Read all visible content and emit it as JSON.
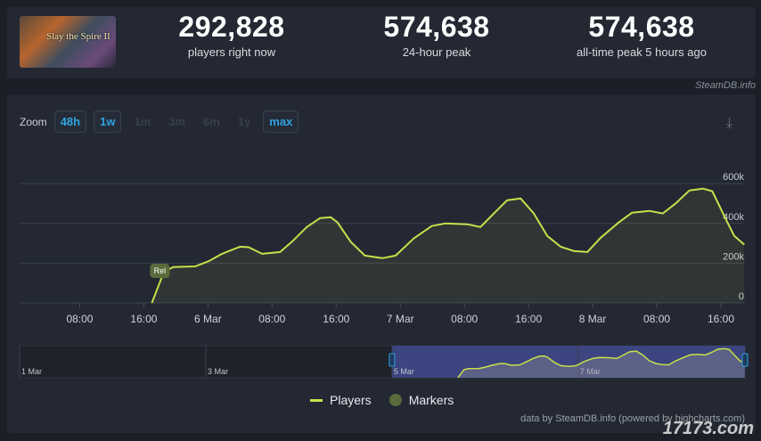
{
  "game": {
    "cover_text": "Slay the Spire II"
  },
  "stats": [
    {
      "value": "292,828",
      "label": "players right now"
    },
    {
      "value": "574,638",
      "label": "24-hour peak"
    },
    {
      "value": "574,638",
      "label": "all-time peak 5 hours ago"
    }
  ],
  "credit": "SteamDB.info",
  "zoom": {
    "label": "Zoom",
    "buttons": [
      {
        "label": "48h",
        "active": true
      },
      {
        "label": "1w",
        "active": true
      },
      {
        "label": "1m",
        "active": false
      },
      {
        "label": "3m",
        "active": false
      },
      {
        "label": "6m",
        "active": false
      },
      {
        "label": "1y",
        "active": false
      },
      {
        "label": "max",
        "active": true
      }
    ]
  },
  "download_icon": "download-icon",
  "chart_data": {
    "type": "area",
    "line_color": "#c8e04a",
    "x_range": [
      "5 Mar 00:30",
      "8 Mar 19:00"
    ],
    "ylim": [
      0,
      650000
    ],
    "y_ticks": [
      {
        "value": 0,
        "label": "0"
      },
      {
        "value": 200000,
        "label": "200k"
      },
      {
        "value": 400000,
        "label": "400k"
      },
      {
        "value": 600000,
        "label": "600k"
      }
    ],
    "x_ticks": [
      {
        "t": "5 Mar 08:00",
        "label": "08:00"
      },
      {
        "t": "5 Mar 16:00",
        "label": "16:00"
      },
      {
        "t": "6 Mar 00:00",
        "label": "6 Mar"
      },
      {
        "t": "6 Mar 08:00",
        "label": "08:00"
      },
      {
        "t": "6 Mar 16:00",
        "label": "16:00"
      },
      {
        "t": "7 Mar 00:00",
        "label": "7 Mar"
      },
      {
        "t": "7 Mar 08:00",
        "label": "08:00"
      },
      {
        "t": "7 Mar 16:00",
        "label": "16:00"
      },
      {
        "t": "8 Mar 00:00",
        "label": "8 Mar"
      },
      {
        "t": "8 Mar 08:00",
        "label": "08:00"
      },
      {
        "t": "8 Mar 16:00",
        "label": "16:00"
      }
    ],
    "grid": true,
    "series": [
      {
        "name": "Players",
        "points": [
          [
            "5 Mar 17:00",
            0
          ],
          [
            "5 Mar 18:30",
            155000
          ],
          [
            "5 Mar 19:40",
            180000
          ],
          [
            "5 Mar 22:25",
            184000
          ],
          [
            "6 Mar 00:05",
            210000
          ],
          [
            "6 Mar 01:45",
            247000
          ],
          [
            "6 Mar 04:00",
            283000
          ],
          [
            "6 Mar 05:05",
            280000
          ],
          [
            "6 Mar 06:45",
            247000
          ],
          [
            "6 Mar 09:00",
            256000
          ],
          [
            "6 Mar 10:40",
            315000
          ],
          [
            "6 Mar 12:20",
            382000
          ],
          [
            "6 Mar 14:00",
            427000
          ],
          [
            "6 Mar 15:20",
            431000
          ],
          [
            "6 Mar 16:10",
            405000
          ],
          [
            "6 Mar 17:50",
            306000
          ],
          [
            "6 Mar 19:35",
            238000
          ],
          [
            "6 Mar 21:45",
            225000
          ],
          [
            "6 Mar 23:25",
            238000
          ],
          [
            "7 Mar 01:40",
            324000
          ],
          [
            "7 Mar 03:55",
            387000
          ],
          [
            "7 Mar 05:35",
            400000
          ],
          [
            "7 Mar 08:20",
            396000
          ],
          [
            "7 Mar 10:00",
            382000
          ],
          [
            "7 Mar 11:40",
            450000
          ],
          [
            "7 Mar 13:20",
            517000
          ],
          [
            "7 Mar 15:00",
            526000
          ],
          [
            "7 Mar 16:40",
            450000
          ],
          [
            "7 Mar 18:20",
            337000
          ],
          [
            "7 Mar 20:00",
            283000
          ],
          [
            "7 Mar 21:40",
            261000
          ],
          [
            "7 Mar 23:20",
            256000
          ],
          [
            "8 Mar 01:00",
            328000
          ],
          [
            "8 Mar 03:15",
            405000
          ],
          [
            "8 Mar 04:55",
            454000
          ],
          [
            "8 Mar 07:05",
            463000
          ],
          [
            "8 Mar 08:45",
            450000
          ],
          [
            "8 Mar 10:25",
            503000
          ],
          [
            "8 Mar 12:05",
            566000
          ],
          [
            "8 Mar 13:45",
            575000
          ],
          [
            "8 Mar 14:55",
            562000
          ],
          [
            "8 Mar 16:35",
            423000
          ],
          [
            "8 Mar 17:40",
            337000
          ],
          [
            "8 Mar 18:55",
            293000
          ]
        ]
      }
    ],
    "markers": [
      {
        "t": "5 Mar 18:00",
        "label": "Rel"
      }
    ],
    "navigator": {
      "range": [
        "1 Mar 00:00",
        "8 Mar 19:00"
      ],
      "selected": [
        "5 Mar 00:00",
        "8 Mar 19:00"
      ],
      "ticks": [
        {
          "t": "1 Mar 00:00",
          "label": "1 Mar"
        },
        {
          "t": "3 Mar 00:00",
          "label": "3 Mar"
        },
        {
          "t": "5 Mar 00:00",
          "label": "5 Mar"
        },
        {
          "t": "7 Mar 00:00",
          "label": "7 Mar"
        }
      ]
    },
    "legend": {
      "placement": "bottom",
      "items": [
        "Players",
        "Markers"
      ]
    }
  },
  "footer": "data by SteamDB.info (powered by highcharts.com)",
  "watermark": "17173.com"
}
